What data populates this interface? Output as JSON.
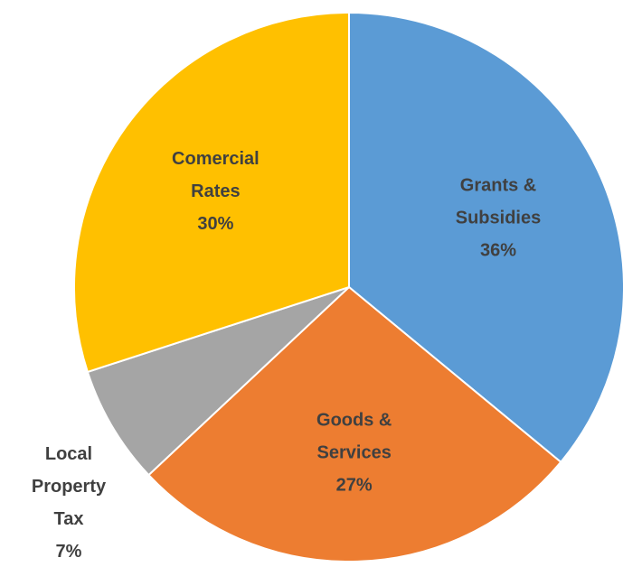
{
  "chart_data": {
    "type": "pie",
    "title": "",
    "start_angle_deg": 0,
    "direction": "clockwise",
    "slices": [
      {
        "label": [
          "Grants &",
          "Subsidies"
        ],
        "value": 36,
        "percent_label": "36%",
        "color": "#5B9BD5",
        "label_position": "inside"
      },
      {
        "label": [
          "Goods &",
          "Services"
        ],
        "value": 27,
        "percent_label": "27%",
        "color": "#ED7D31",
        "label_position": "inside"
      },
      {
        "label": [
          "Local",
          "Property",
          "Tax"
        ],
        "value": 7,
        "percent_label": "7%",
        "color": "#A5A5A5",
        "label_position": "outside"
      },
      {
        "label": [
          "Comercial",
          "Rates"
        ],
        "value": 30,
        "percent_label": "30%",
        "color": "#FFC000",
        "label_position": "inside"
      }
    ]
  }
}
